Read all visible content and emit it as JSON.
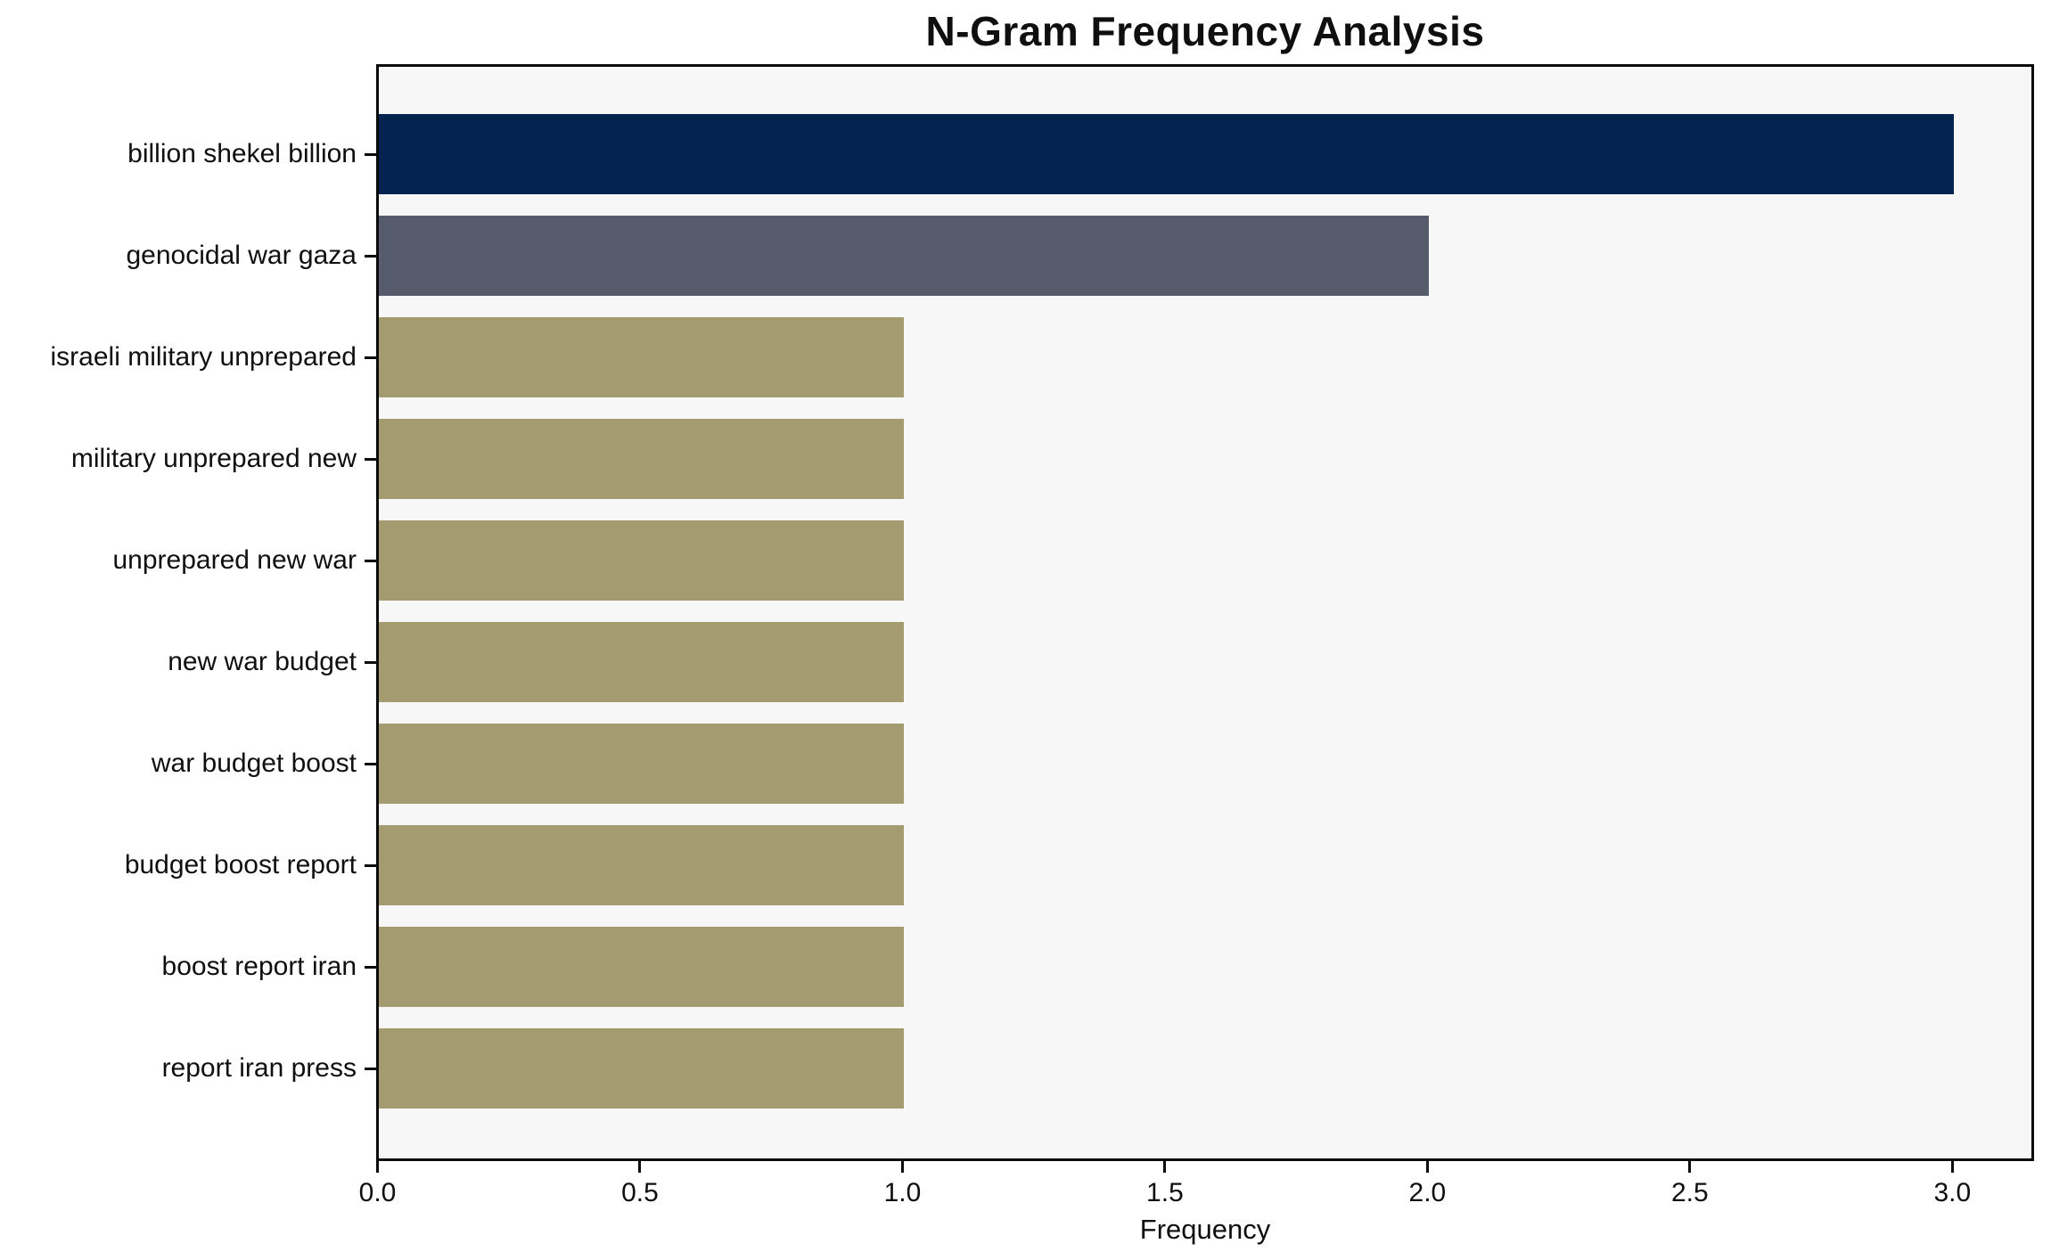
{
  "chart_data": {
    "type": "bar",
    "orientation": "horizontal",
    "title": "N-Gram Frequency Analysis",
    "xlabel": "Frequency",
    "ylabel": "",
    "categories": [
      "billion shekel billion",
      "genocidal war gaza",
      "israeli military unprepared",
      "military unprepared new",
      "unprepared new war",
      "new war budget",
      "war budget boost",
      "budget boost report",
      "boost report iran",
      "report iran press"
    ],
    "values": [
      3,
      2,
      1,
      1,
      1,
      1,
      1,
      1,
      1,
      1
    ],
    "bar_colors": [
      "#04234e",
      "#575c6d",
      "#a49b70",
      "#a49b70",
      "#a49b70",
      "#a49b70",
      "#a49b70",
      "#a49b70",
      "#a49b70",
      "#a49b70"
    ],
    "xticks": [
      0,
      0.5,
      1,
      1.5,
      2,
      2.5,
      3
    ],
    "xtick_labels": [
      "0.0",
      "0.5",
      "1.0",
      "1.5",
      "2.0",
      "2.5",
      "3.0"
    ],
    "xlim": [
      0,
      3.148
    ],
    "grid": false,
    "legend": "none",
    "plot_background": "#f7f7f7",
    "figure_background": "#ffffff",
    "spine_color": "#0b0b0b",
    "text_color": "#0f0f0f"
  }
}
